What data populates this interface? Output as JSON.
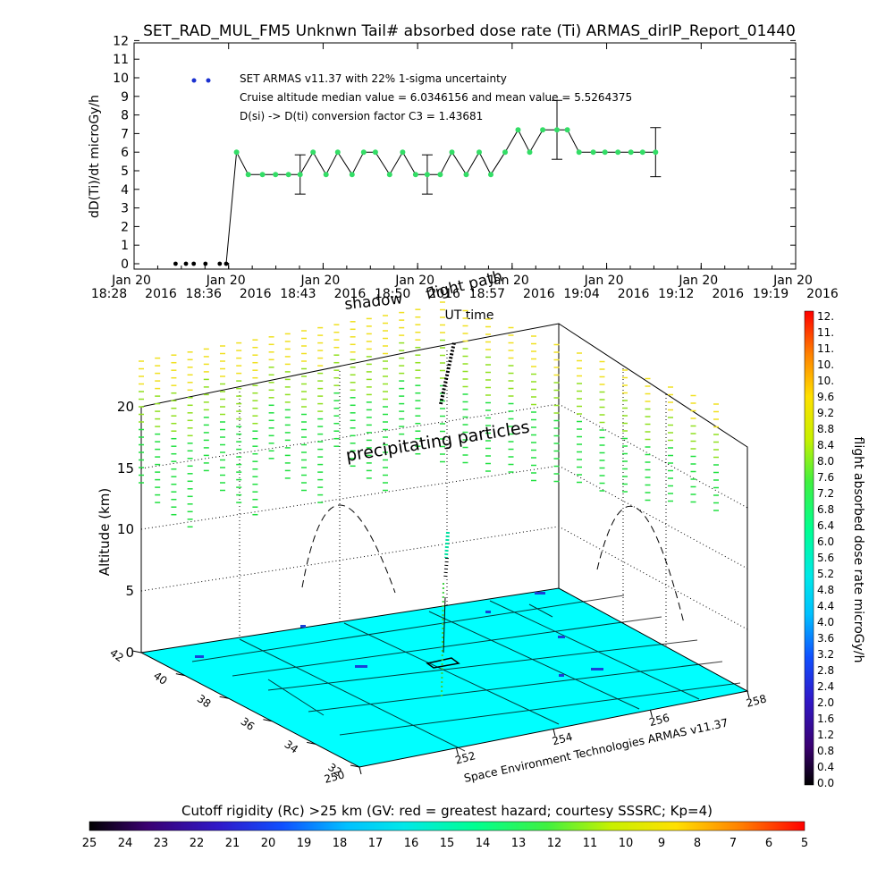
{
  "chart_data": [
    {
      "type": "scatter",
      "title": "SET_RAD_MUL_FM5 Unknwn Tail#  absorbed dose rate (Ti) ARMAS_dirIP_Report_01440",
      "xlabel": "UT time",
      "ylabel": "dD(Ti)/dt microGy/h",
      "ylim": [
        0,
        12
      ],
      "yticks": [
        "0",
        "1",
        "2",
        "3",
        "4",
        "5",
        "6",
        "7",
        "8",
        "9",
        "10",
        "11",
        "12"
      ],
      "xticks": [
        {
          "date": "Jan 20",
          "time": "18:28",
          "year": "2016"
        },
        {
          "date": "Jan 20",
          "time": "18:36",
          "year": "2016"
        },
        {
          "date": "Jan 20",
          "time": "18:43",
          "year": "2016"
        },
        {
          "date": "Jan 20",
          "time": "18:50",
          "year": "2016"
        },
        {
          "date": "Jan 20",
          "time": "18:57",
          "year": "2016"
        },
        {
          "date": "Jan 20",
          "time": "19:04",
          "year": "2016"
        },
        {
          "date": "Jan 20",
          "time": "19:12",
          "year": "2016"
        },
        {
          "date": "Jan 20",
          "time": "19:19",
          "year": "2016"
        }
      ],
      "legend": [
        "SET ARMAS v11.37 with 22% 1-sigma uncertainty",
        "Cruise altitude median value = 6.0346156 and mean value = 5.5264375",
        "D(si) -> D(ti) conversion factor C3 = 1.43681"
      ],
      "x_minutes_after_18_28": [
        3.2,
        4.0,
        4.6,
        5.5,
        6.6,
        7.1,
        7.9,
        8.8,
        9.9,
        10.9,
        11.9,
        12.8,
        13.8,
        14.8,
        15.7,
        16.8,
        17.7,
        18.6,
        19.7,
        20.7,
        21.7,
        22.6,
        23.6,
        24.5,
        25.6,
        26.6,
        27.5,
        28.6,
        29.6,
        30.5,
        31.5,
        32.6,
        33.4,
        34.3,
        35.4,
        36.3,
        37.3,
        38.3,
        39.2,
        40.2
      ],
      "values": [
        0,
        0,
        0,
        0,
        0,
        0,
        6.0,
        4.8,
        4.8,
        4.8,
        4.8,
        4.8,
        6.0,
        4.8,
        6.0,
        4.8,
        6.0,
        6.0,
        4.8,
        6.0,
        4.8,
        4.8,
        4.8,
        6.0,
        4.8,
        6.0,
        4.8,
        6.0,
        7.2,
        6.0,
        7.2,
        7.2,
        7.2,
        6.0,
        6.0,
        6.0,
        6.0,
        6.0,
        6.0,
        6.0
      ],
      "error_bars_at_index": [
        11,
        21,
        31,
        39
      ],
      "marker_color": "#33dd66",
      "zero_marker_color": "#000000"
    },
    {
      "type": "surface-3d",
      "zlabel": "Altitude (km)",
      "zticks": [
        "0",
        "5",
        "10",
        "15",
        "20"
      ],
      "lat_ticks": [
        "32",
        "34",
        "36",
        "38",
        "40",
        "42"
      ],
      "lon_ticks": [
        "250",
        "252",
        "254",
        "256",
        "258"
      ],
      "annotations": [
        "precipitating particles",
        "shadow",
        "flight path",
        "Space Environment Technologies ARMAS v11.37"
      ],
      "ground_color": "#00ffff"
    },
    {
      "type": "colorbar",
      "label": "flight absorbed dose rate microGy/h",
      "ticks": [
        "0.0",
        "0.4",
        "0.8",
        "1.2",
        "1.6",
        "2.0",
        "2.4",
        "2.8",
        "3.2",
        "3.6",
        "4.0",
        "4.4",
        "4.8",
        "5.2",
        "5.6",
        "6.0",
        "6.4",
        "6.8",
        "7.2",
        "7.6",
        "8.0",
        "8.4",
        "8.8",
        "9.2",
        "9.6",
        "10.",
        "10.",
        "11.",
        "11.",
        "12."
      ]
    },
    {
      "type": "colorbar",
      "label": "Cutoff rigidity (Rc) >25 km (GV: red = greatest hazard; courtesy SSSRC; Kp=4)",
      "ticks": [
        "25",
        "24",
        "23",
        "22",
        "21",
        "20",
        "19",
        "18",
        "17",
        "16",
        "15",
        "14",
        "13",
        "12",
        "11",
        "10",
        "9",
        "8",
        "7",
        "6",
        "5"
      ]
    }
  ]
}
